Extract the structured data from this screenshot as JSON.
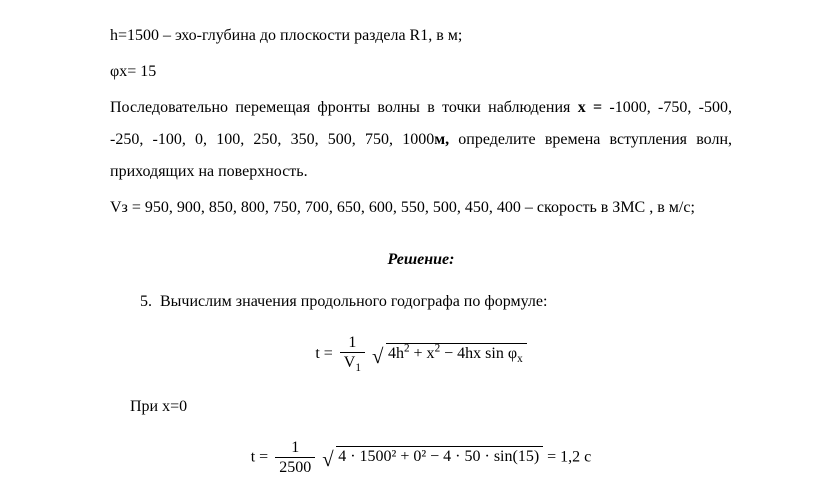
{
  "typography": {
    "font_family": "Times New Roman",
    "body_fontsize": 16,
    "color": "#000000",
    "background": "#ffffff",
    "line_height": 2.0
  },
  "line1": "h=1500 – эхо-глубина до плоскости раздела R1, в м;",
  "line2": "φx= 15",
  "para1": "Последовательно перемещая фронты волны в точки наблюдения ",
  "para1_bold": "x = ",
  "para1_rest": "-1000, -750, -500, -250, -100, 0, 100, 250, 350, 500, 750, 1000",
  "para1_bold2": "м,",
  "para1_end": " определите времена вступления волн, приходящих на поверхность.",
  "line_vz": "Vз = 950, 900, 850, 800, 750, 700, 650, 600, 550, 500, 450, 400 – скорость в ЗМС , в м/с;",
  "solution_title": "Решение:",
  "list_num": "5.",
  "list_text": "Вычислим значения продольного годографа по формуле:",
  "formula1": {
    "lhs": "t =",
    "frac_num": "1",
    "frac_den_var": "V",
    "frac_den_sub": "1",
    "sqrt_expr_a": "4h",
    "sqrt_expr_b": " + x",
    "sqrt_expr_c": " − 4hx sin φ",
    "sqrt_sub": "x"
  },
  "at_x0": "При x=0",
  "formula2": {
    "lhs": "t =",
    "frac_num": "1",
    "frac_den": "2500",
    "sqrt_expr": "4 · 1500² + 0² − 4 · 50 · sin(15)",
    "rhs": " = 1,2 с"
  }
}
